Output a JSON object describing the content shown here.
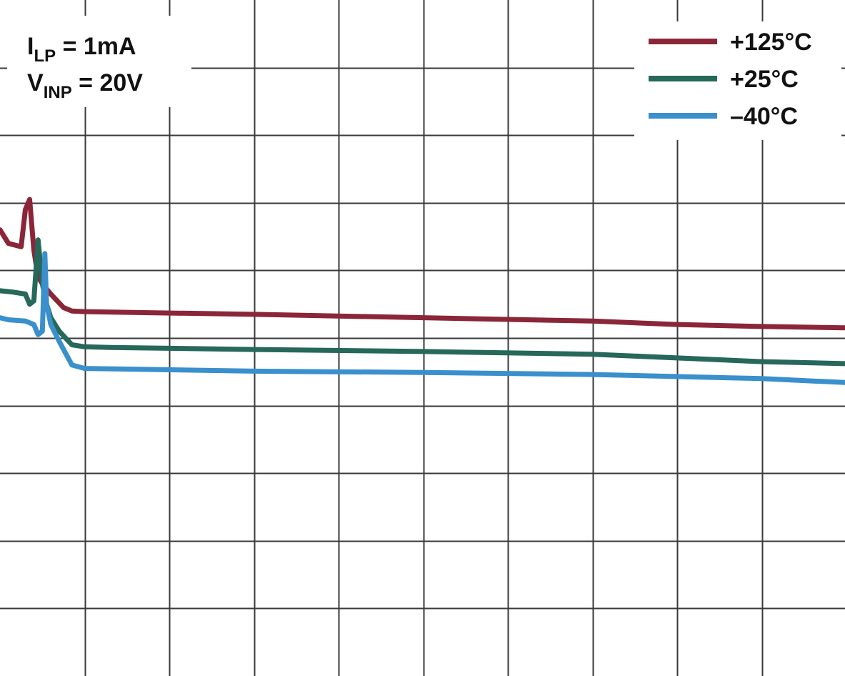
{
  "chart_data": {
    "type": "line",
    "grid": true,
    "title": "",
    "xlabel": "",
    "ylabel": "",
    "xlim": [
      0,
      10
    ],
    "ylim": [
      0,
      10
    ],
    "conditions": [
      {
        "symbol": "I",
        "subscript": "LP",
        "rest": " = 1mA"
      },
      {
        "symbol": "V",
        "subscript": "INP",
        "rest": " = 20V"
      }
    ],
    "legend_placement": "top-right",
    "series": [
      {
        "name": "+125°C",
        "color": "#8B2638",
        "x": [
          0,
          0.1,
          0.25,
          0.3,
          0.35,
          0.4,
          0.45,
          0.5,
          0.6,
          0.75,
          0.85,
          1.0,
          1.5,
          3.0,
          5.0,
          7.0,
          8.0,
          9.0,
          10.0
        ],
        "y": [
          6.6,
          6.4,
          6.35,
          6.9,
          7.05,
          6.3,
          5.9,
          5.8,
          5.65,
          5.45,
          5.4,
          5.39,
          5.38,
          5.35,
          5.3,
          5.25,
          5.2,
          5.17,
          5.15
        ]
      },
      {
        "name": "+25°C",
        "color": "#266859",
        "x": [
          0,
          0.15,
          0.3,
          0.35,
          0.4,
          0.45,
          0.5,
          0.55,
          0.6,
          0.7,
          0.85,
          1.0,
          1.3,
          3.0,
          5.0,
          7.0,
          9.0,
          10.0
        ],
        "y": [
          5.7,
          5.68,
          5.65,
          5.5,
          5.55,
          6.45,
          5.8,
          5.5,
          5.3,
          5.1,
          4.9,
          4.87,
          4.86,
          4.83,
          4.8,
          4.76,
          4.65,
          4.62
        ]
      },
      {
        "name": "–40°C",
        "color": "#3990CC",
        "x": [
          0,
          0.1,
          0.3,
          0.4,
          0.45,
          0.5,
          0.53,
          0.55,
          0.6,
          0.7,
          0.85,
          1.0,
          1.5,
          3.0,
          5.0,
          7.0,
          9.0,
          10.0
        ],
        "y": [
          5.3,
          5.27,
          5.25,
          5.2,
          5.05,
          5.1,
          6.25,
          5.5,
          5.2,
          4.95,
          4.6,
          4.55,
          4.54,
          4.51,
          4.49,
          4.46,
          4.4,
          4.34
        ]
      }
    ]
  }
}
